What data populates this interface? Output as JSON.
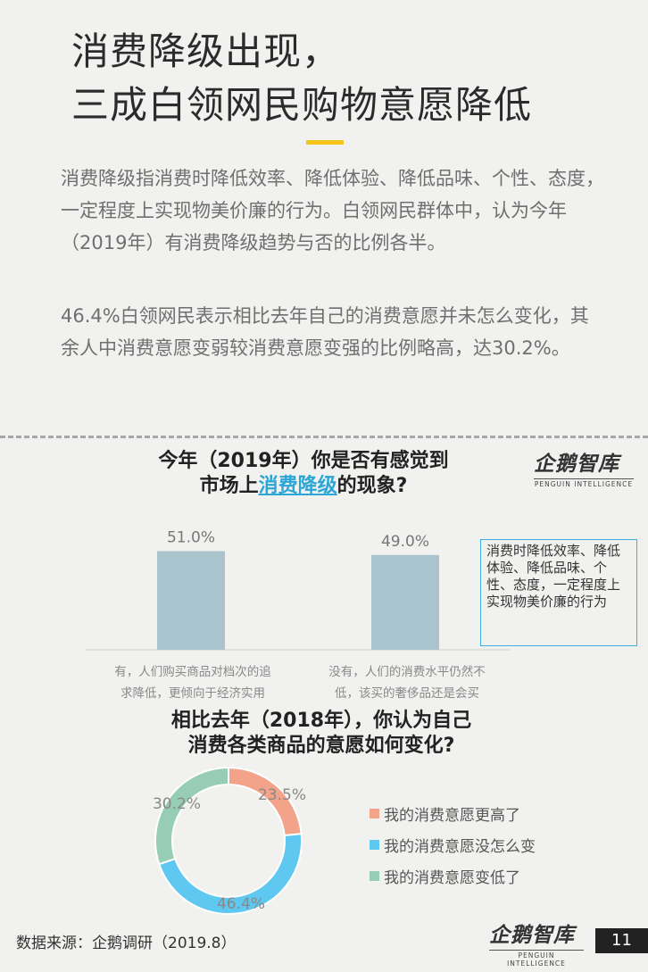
{
  "title": {
    "line1": "消费降级出现，",
    "line2": "三成白领网民购物意愿降低"
  },
  "paragraphs": [
    "消费降级指消费时降低效率、降低体验、降低品味、个性、态度，一定程度上实现物美价廉的行为。白领网民群体中，认为今年（2019年）有消费降级趋势与否的比例各半。",
    "46.4%白领网民表示相比去年自己的消费意愿并未怎么变化，其余人中消费意愿变弱较消费意愿变强的比例略高，达30.2%。"
  ],
  "chart1": {
    "question_pre": "今年（2019年）你是否有感觉到",
    "question_mid_pre": "市场上",
    "question_highlight": "消费降级",
    "question_post": "的现象?",
    "note": "消费时降低效率、降低体验、降低品味、个性、态度，一定程度上实现物美价廉的行为"
  },
  "chart2": {
    "question_line1": "相比去年（2018年），你认为自己",
    "question_line2": "消费各类商品的意愿如何变化?"
  },
  "logo": {
    "text": "企鹅智库",
    "sub": "PENGUIN INTELLIGENCE"
  },
  "source": "数据来源：企鹅调研（2019.8）",
  "page_number": "11",
  "colors": {
    "bar": "#a9c4cd",
    "accent_yellow": "#f3c41a",
    "highlight_blue": "#2ba6d6",
    "donut_high": "#f2a38a",
    "donut_same": "#5ec8f1",
    "donut_low": "#98cdb5"
  },
  "chart_data": [
    {
      "type": "bar",
      "title": "今年（2019年）你是否有感觉到市场上消费降级的现象?",
      "categories": [
        "有，人们购买商品对档次的追求降低，更倾向于经济实用",
        "没有，人们的消费水平仍然不低，该买的奢侈品还是会买"
      ],
      "category_lines": [
        [
          "有，人们购买商品对档次的追",
          "求降低，更倾向于经济实用"
        ],
        [
          "没有，人们的消费水平仍然不",
          "低，该买的奢侈品还是会买"
        ]
      ],
      "values": [
        51.0,
        49.0
      ],
      "value_labels": [
        "51.0%",
        "49.0%"
      ],
      "ylim": [
        0,
        60
      ]
    },
    {
      "type": "pie",
      "title": "相比去年（2018年），你认为自己消费各类商品的意愿如何变化?",
      "categories": [
        "我的消费意愿更高了",
        "我的消费意愿没怎么变",
        "我的消费意愿变低了"
      ],
      "values": [
        23.5,
        46.4,
        30.2
      ],
      "value_labels": [
        "23.5%",
        "46.4%",
        "30.2%"
      ],
      "colors": [
        "#f2a38a",
        "#5ec8f1",
        "#98cdb5"
      ],
      "legend": "right"
    }
  ]
}
